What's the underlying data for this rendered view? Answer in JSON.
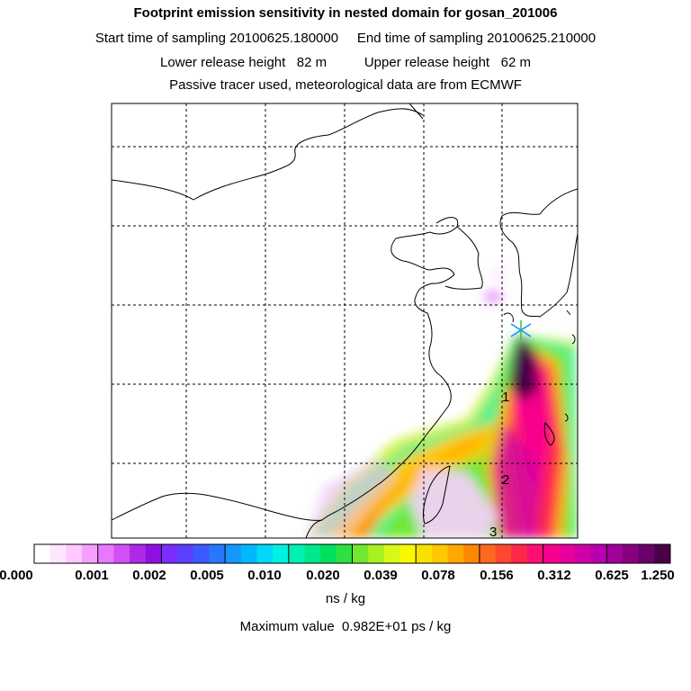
{
  "header": {
    "title": "Footprint emission sensitivity in nested domain for gosan_201006",
    "start_label": "Start time of sampling 20100625.180000",
    "end_label": "End time of sampling 20100625.210000",
    "lower_label": "Lower release height   82 m",
    "upper_label": "Upper release height   62 m",
    "tracer_note": "Passive tracer used, meteorological data are from ECMWF"
  },
  "markers": [
    "1",
    "2",
    "3"
  ],
  "legend": {
    "ticks": [
      "0.000",
      "0.001",
      "0.002",
      "0.005",
      "0.010",
      "0.020",
      "0.039",
      "0.078",
      "0.156",
      "0.312",
      "0.625",
      "1.250"
    ],
    "colors": [
      "#ffffff",
      "#ffe6ff",
      "#ffc8ff",
      "#f5a0ff",
      "#e878ff",
      "#d050f5",
      "#b028e8",
      "#9010e0",
      "#7a2dff",
      "#5a40ff",
      "#3c5aff",
      "#2878ff",
      "#1498ff",
      "#00b8ff",
      "#00d8f8",
      "#00f0e0",
      "#00f0b0",
      "#00e88a",
      "#00e060",
      "#30e040",
      "#70e830",
      "#a8f020",
      "#d8f818",
      "#f8f800",
      "#f8e000",
      "#ffc800",
      "#ffa800",
      "#ff8800",
      "#ff6820",
      "#ff4830",
      "#ff2848",
      "#ff1070",
      "#f8008c",
      "#e8009c",
      "#d000a8",
      "#b800b0",
      "#a00098",
      "#880080",
      "#6a0068",
      "#4a0048"
    ],
    "units": "ns / kg"
  },
  "footer": {
    "max_value": "Maximum value  0.982E+01 ps / kg"
  }
}
